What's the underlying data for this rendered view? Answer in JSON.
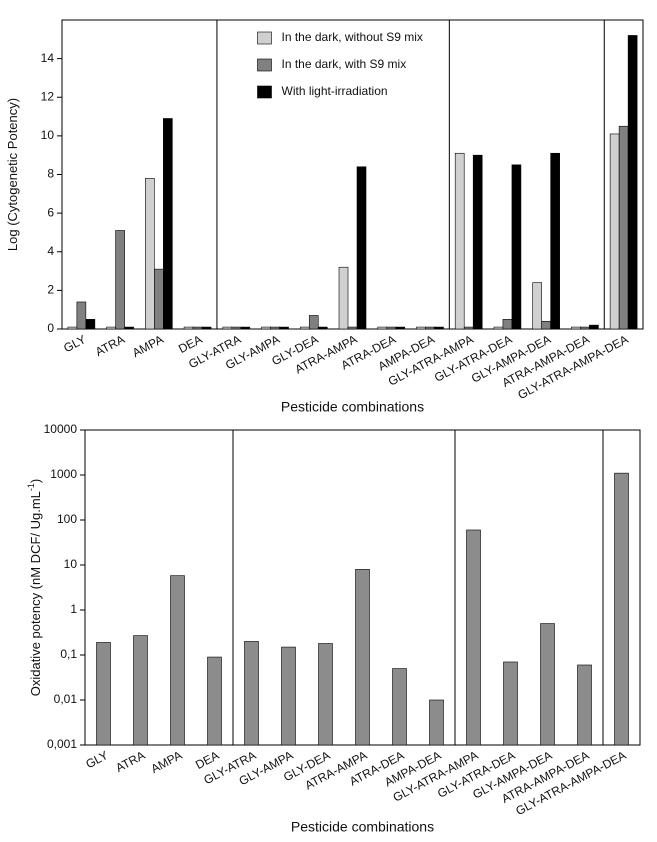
{
  "chart_data": [
    {
      "type": "bar",
      "y_label": "Log (Cytogenetic Potency)",
      "x_label": "Pesticide combinations",
      "categories": [
        "GLY",
        "ATRA",
        "AMPA",
        "DEA",
        "GLY-ATRA",
        "GLY-AMPA",
        "GLY-DEA",
        "ATRA-AMPA",
        "ATRA-DEA",
        "AMPA-DEA",
        "GLY-ATRA-AMPA",
        "GLY-ATRA-DEA",
        "GLY-AMPA-DEA",
        "ATRA-AMPA-DEA",
        "GLY-ATRA-AMPA-DEA"
      ],
      "series": [
        {
          "name": "In the dark, without S9 mix",
          "color": "#d0d0d0",
          "values": [
            0.1,
            0.1,
            7.8,
            0.1,
            0.1,
            0.1,
            0.1,
            3.2,
            0.1,
            0.1,
            9.1,
            0.1,
            2.4,
            0.1,
            10.1
          ]
        },
        {
          "name": "In the dark, with S9 mix",
          "color": "#808080",
          "values": [
            1.4,
            5.1,
            3.1,
            0.1,
            0.1,
            0.1,
            0.7,
            0.1,
            0.1,
            0.1,
            0.1,
            0.5,
            0.4,
            0.1,
            10.5
          ]
        },
        {
          "name": "With light-irradiation",
          "color": "#000000",
          "values": [
            0.5,
            0.1,
            10.9,
            0.1,
            0.1,
            0.1,
            0.1,
            8.4,
            0.1,
            0.1,
            9.0,
            8.5,
            9.1,
            0.2,
            15.2
          ]
        }
      ],
      "ylim": [
        0,
        16
      ],
      "yticks": [
        0,
        2,
        4,
        6,
        8,
        10,
        12,
        14
      ],
      "legend": "upper center"
    },
    {
      "type": "bar",
      "y_label": "Oxidative potency (nM DCF/ Ug.mL",
      "y_label_sup": "-1",
      "y_label_end": ")",
      "x_label": "Pesticide combinations",
      "categories": [
        "GLY",
        "ATRA",
        "AMPA",
        "DEA",
        "GLY-ATRA",
        "GLY-AMPA",
        "GLY-DEA",
        "ATRA-AMPA",
        "ATRA-DEA",
        "AMPA-DEA",
        "GLY-ATRA-AMPA",
        "GLY-ATRA-DEA",
        "GLY-AMPA-DEA",
        "ATRA-AMPA-DEA",
        "GLY-ATRA-AMPA-DEA"
      ],
      "values": [
        0.19,
        0.27,
        5.8,
        0.09,
        0.2,
        0.15,
        0.18,
        8,
        0.05,
        0.01,
        60,
        0.07,
        0.5,
        0.06,
        1100
      ],
      "color": "#8c8c8c",
      "log_scale": true,
      "ylim": [
        0.001,
        10000
      ],
      "yticks": [
        {
          "value": 0.001,
          "label": "0,001"
        },
        {
          "value": 0.01,
          "label": "0,01"
        },
        {
          "value": 0.1,
          "label": "0,1"
        },
        1,
        10,
        100,
        1000,
        10000
      ]
    }
  ]
}
